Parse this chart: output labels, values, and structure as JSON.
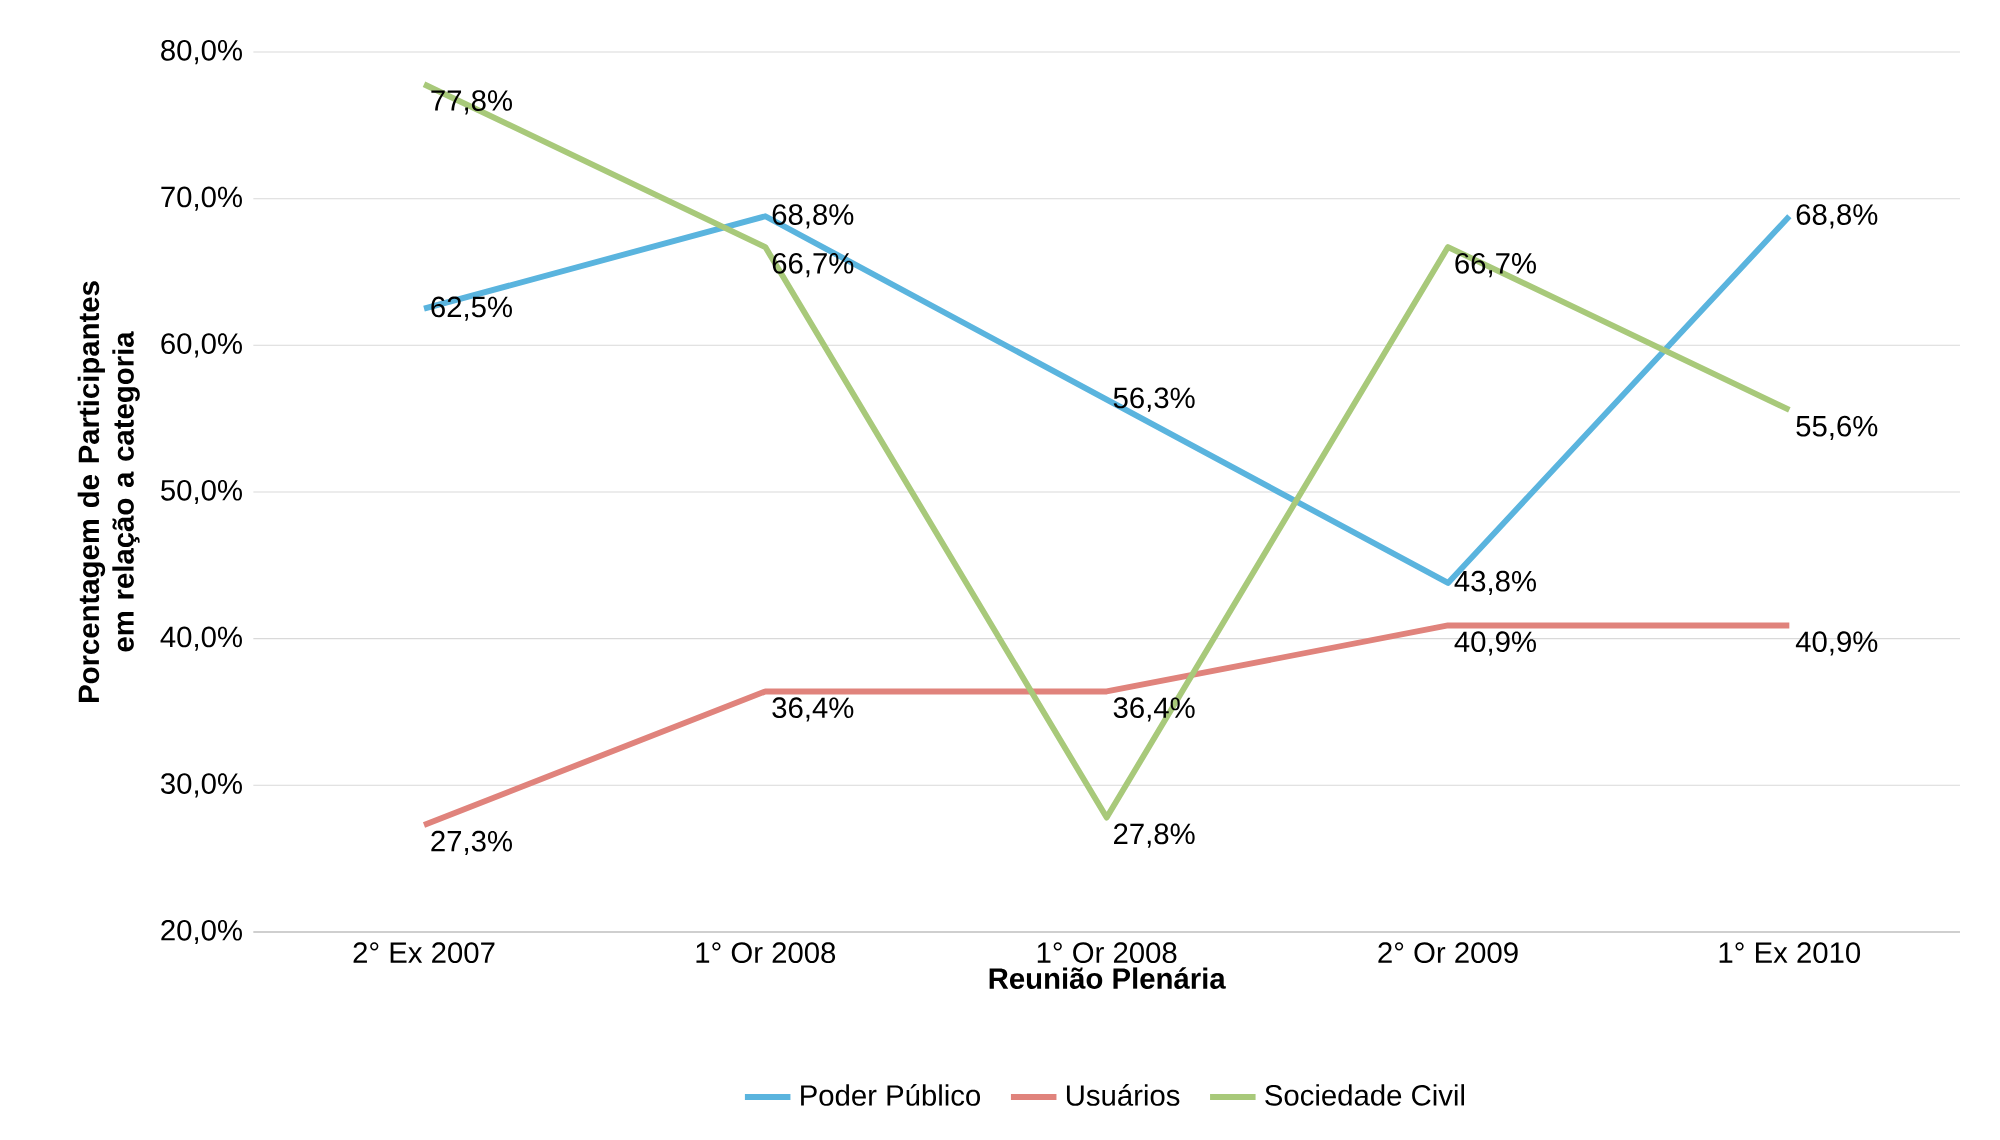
{
  "chart_data": {
    "type": "line",
    "xlabel": "Reunião Plenária",
    "ylabel": "Porcentagem de Participantes em relação a categoria",
    "categories": [
      "2° Ex 2007",
      "1° Or 2008",
      "1° Or 2008",
      "2° Or 2009",
      "1° Ex 2010"
    ],
    "series": [
      {
        "name": "Poder Público",
        "color": "#5ab4de",
        "values": [
          62.5,
          68.8,
          56.3,
          43.8,
          68.8
        ],
        "value_labels": [
          "62,5%",
          "68,8%",
          "56,3%",
          "43,8%",
          "68,8%"
        ]
      },
      {
        "name": "Usuários",
        "color": "#e0837c",
        "values": [
          27.3,
          36.4,
          36.4,
          40.9,
          40.9
        ],
        "value_labels": [
          "27,3%",
          "36,4%",
          "36,4%",
          "40,9%",
          "40,9%"
        ]
      },
      {
        "name": "Sociedade Civil",
        "color": "#a8c97a",
        "values": [
          77.8,
          66.7,
          27.8,
          66.7,
          55.6
        ],
        "value_labels": [
          "77,8%",
          "66,7%",
          "27,8%",
          "66,7%",
          "55,6%"
        ]
      }
    ],
    "ylim": [
      20,
      80
    ],
    "yticks": [
      {
        "value": 20,
        "label": "20,0%"
      },
      {
        "value": 30,
        "label": "30,0%"
      },
      {
        "value": 40,
        "label": "40,0%"
      },
      {
        "value": 50,
        "label": "50,0%"
      },
      {
        "value": 60,
        "label": "60,0%"
      },
      {
        "value": 70,
        "label": "70,0%"
      },
      {
        "value": 80,
        "label": "80,0%"
      }
    ],
    "grid": "y",
    "legend": "bottom",
    "marker": "none",
    "line_style": "solid"
  }
}
